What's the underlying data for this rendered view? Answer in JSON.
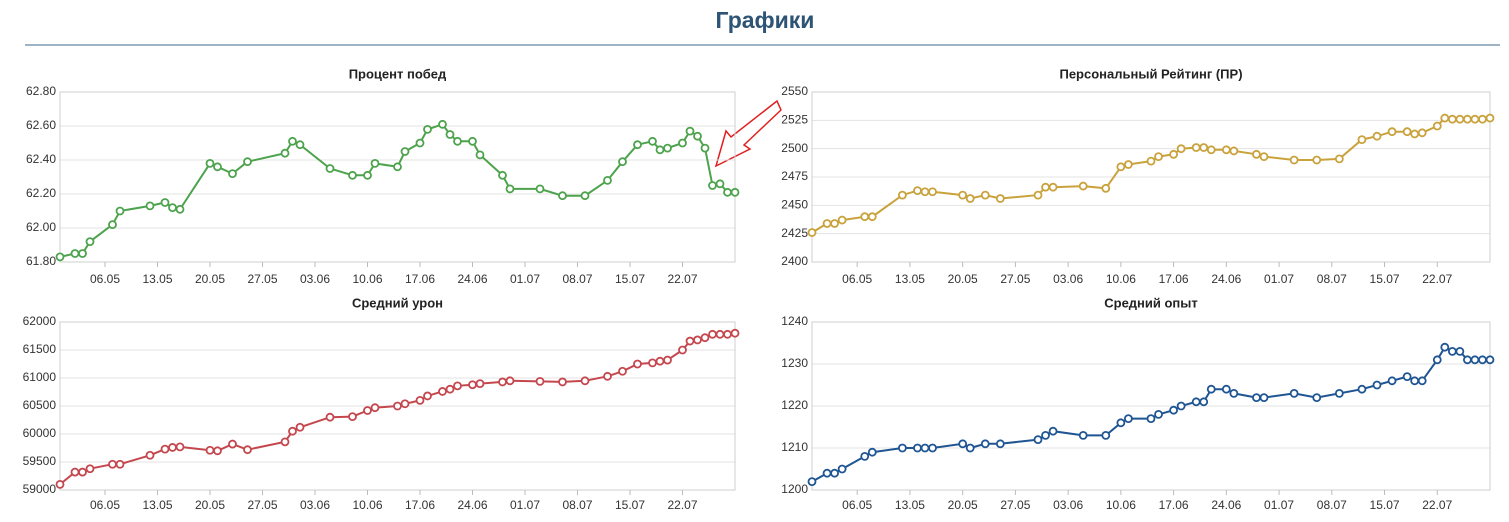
{
  "title": "Графики",
  "chart_data": [
    {
      "type": "line",
      "title": "Процент побед",
      "x": [
        "30.04",
        "02.05",
        "03.05",
        "04.05",
        "07.05",
        "08.05",
        "12.05",
        "14.05",
        "15.05",
        "16.05",
        "20.05",
        "21.05",
        "23.05",
        "25.05",
        "30.05",
        "31.05",
        "01.06",
        "05.06",
        "08.06",
        "10.06",
        "11.06",
        "14.06",
        "15.06",
        "17.06",
        "18.06",
        "20.06",
        "21.06",
        "22.06",
        "24.06",
        "25.06",
        "28.06",
        "29.06",
        "03.07",
        "06.07",
        "09.07",
        "12.07",
        "14.07",
        "16.07",
        "18.07",
        "19.07",
        "20.07",
        "22.07",
        "23.07",
        "24.07",
        "25.07",
        "26.07",
        "27.07",
        "28.07",
        "29.07"
      ],
      "series": [
        {
          "color": "#4da34d",
          "values": [
            61.83,
            61.85,
            61.85,
            61.92,
            62.02,
            62.1,
            62.13,
            62.15,
            62.12,
            62.11,
            62.38,
            62.36,
            62.32,
            62.39,
            62.44,
            62.51,
            62.49,
            62.35,
            62.31,
            62.31,
            62.38,
            62.36,
            62.45,
            62.5,
            62.58,
            62.61,
            62.55,
            62.51,
            62.51,
            62.43,
            62.31,
            62.23,
            62.23,
            62.19,
            62.19,
            62.28,
            62.39,
            62.49,
            62.51,
            62.46,
            62.47,
            62.5,
            62.57,
            62.54,
            62.47,
            62.25,
            62.26,
            62.21,
            62.21
          ]
        }
      ],
      "xlim": [
        "30.04",
        "29.07"
      ],
      "xticks": [
        "06.05",
        "13.05",
        "20.05",
        "27.05",
        "03.06",
        "10.06",
        "17.06",
        "24.06",
        "01.07",
        "08.07",
        "15.07",
        "22.07"
      ],
      "ylim": [
        61.8,
        62.8
      ],
      "yticks": [
        {
          "value": 61.8,
          "label": "61.80"
        },
        {
          "value": 62.0,
          "label": "62.00"
        },
        {
          "value": 62.2,
          "label": "62.20"
        },
        {
          "value": 62.4,
          "label": "62.40"
        },
        {
          "value": 62.6,
          "label": "62.60"
        },
        {
          "value": 62.8,
          "label": "62.80"
        }
      ],
      "grid": true
    },
    {
      "type": "line",
      "title": "Персональный Рейтинг (ПР)",
      "x": [
        "30.04",
        "02.05",
        "03.05",
        "04.05",
        "07.05",
        "08.05",
        "12.05",
        "14.05",
        "15.05",
        "16.05",
        "20.05",
        "21.05",
        "23.05",
        "25.05",
        "30.05",
        "31.05",
        "01.06",
        "05.06",
        "08.06",
        "10.06",
        "11.06",
        "14.06",
        "15.06",
        "17.06",
        "18.06",
        "20.06",
        "21.06",
        "22.06",
        "24.06",
        "25.06",
        "28.06",
        "29.06",
        "03.07",
        "06.07",
        "09.07",
        "12.07",
        "14.07",
        "16.07",
        "18.07",
        "19.07",
        "20.07",
        "22.07",
        "23.07",
        "24.07",
        "25.07",
        "26.07",
        "27.07",
        "28.07",
        "29.07"
      ],
      "series": [
        {
          "color": "#c9a23c",
          "values": [
            2426,
            2434,
            2434,
            2437,
            2440,
            2440,
            2459,
            2463,
            2462,
            2462,
            2459,
            2456,
            2459,
            2456,
            2459,
            2466,
            2466,
            2467,
            2465,
            2484,
            2486,
            2489,
            2493,
            2495,
            2500,
            2501,
            2501,
            2499,
            2499,
            2498,
            2495,
            2493,
            2490,
            2490,
            2491,
            2508,
            2511,
            2515,
            2515,
            2513,
            2514,
            2520,
            2527,
            2526,
            2526,
            2526,
            2526,
            2526,
            2527
          ]
        }
      ],
      "xlim": [
        "30.04",
        "29.07"
      ],
      "xticks": [
        "06.05",
        "13.05",
        "20.05",
        "27.05",
        "03.06",
        "10.06",
        "17.06",
        "24.06",
        "01.07",
        "08.07",
        "15.07",
        "22.07"
      ],
      "ylim": [
        2400,
        2550
      ],
      "yticks": [
        2400,
        2425,
        2450,
        2475,
        2500,
        2525,
        2550
      ],
      "grid": true
    },
    {
      "type": "line",
      "title": "Средний урон",
      "x": [
        "30.04",
        "02.05",
        "03.05",
        "04.05",
        "07.05",
        "08.05",
        "12.05",
        "14.05",
        "15.05",
        "16.05",
        "20.05",
        "21.05",
        "23.05",
        "25.05",
        "30.05",
        "31.05",
        "01.06",
        "05.06",
        "08.06",
        "10.06",
        "11.06",
        "14.06",
        "15.06",
        "17.06",
        "18.06",
        "20.06",
        "21.06",
        "22.06",
        "24.06",
        "25.06",
        "28.06",
        "29.06",
        "03.07",
        "06.07",
        "09.07",
        "12.07",
        "14.07",
        "16.07",
        "18.07",
        "19.07",
        "20.07",
        "22.07",
        "23.07",
        "24.07",
        "25.07",
        "26.07",
        "27.07",
        "28.07",
        "29.07"
      ],
      "series": [
        {
          "color": "#c4474e",
          "values": [
            59100,
            59320,
            59320,
            59380,
            59460,
            59460,
            59620,
            59730,
            59760,
            59770,
            59710,
            59700,
            59820,
            59720,
            59860,
            60050,
            60120,
            60300,
            60310,
            60420,
            60470,
            60500,
            60540,
            60600,
            60680,
            60760,
            60800,
            60860,
            60880,
            60900,
            60930,
            60950,
            60940,
            60930,
            60950,
            61030,
            61120,
            61250,
            61270,
            61300,
            61320,
            61500,
            61660,
            61680,
            61720,
            61780,
            61780,
            61780,
            61800
          ]
        }
      ],
      "xlim": [
        "30.04",
        "29.07"
      ],
      "xticks": [
        "06.05",
        "13.05",
        "20.05",
        "27.05",
        "03.06",
        "10.06",
        "17.06",
        "24.06",
        "01.07",
        "08.07",
        "15.07",
        "22.07"
      ],
      "ylim": [
        59000,
        62000
      ],
      "yticks": [
        59000,
        59500,
        60000,
        60500,
        61000,
        61500,
        62000
      ],
      "grid": true
    },
    {
      "type": "line",
      "title": "Средний опыт",
      "x": [
        "30.04",
        "02.05",
        "03.05",
        "04.05",
        "07.05",
        "08.05",
        "12.05",
        "14.05",
        "15.05",
        "16.05",
        "20.05",
        "21.05",
        "23.05",
        "25.05",
        "30.05",
        "31.05",
        "01.06",
        "05.06",
        "08.06",
        "10.06",
        "11.06",
        "14.06",
        "15.06",
        "17.06",
        "18.06",
        "20.06",
        "21.06",
        "22.06",
        "24.06",
        "25.06",
        "28.06",
        "29.06",
        "03.07",
        "06.07",
        "09.07",
        "12.07",
        "14.07",
        "16.07",
        "18.07",
        "19.07",
        "20.07",
        "22.07",
        "23.07",
        "24.07",
        "25.07",
        "26.07",
        "27.07",
        "28.07",
        "29.07"
      ],
      "series": [
        {
          "color": "#1e5592",
          "values": [
            1202,
            1204,
            1204,
            1205,
            1208,
            1209,
            1210,
            1210,
            1210,
            1210,
            1211,
            1210,
            1211,
            1211,
            1212,
            1213,
            1214,
            1213,
            1213,
            1216,
            1217,
            1217,
            1218,
            1219,
            1220,
            1221,
            1221,
            1224,
            1224,
            1223,
            1222,
            1222,
            1223,
            1222,
            1223,
            1224,
            1225,
            1226,
            1227,
            1226,
            1226,
            1231,
            1234,
            1233,
            1233,
            1231,
            1231,
            1231,
            1231
          ]
        }
      ],
      "xlim": [
        "30.04",
        "29.07"
      ],
      "xticks": [
        "06.05",
        "13.05",
        "20.05",
        "27.05",
        "03.06",
        "10.06",
        "17.06",
        "24.06",
        "01.07",
        "08.07",
        "15.07",
        "22.07"
      ],
      "ylim": [
        1200,
        1240
      ],
      "yticks": [
        1200,
        1210,
        1220,
        1230,
        1240
      ],
      "grid": true
    }
  ]
}
